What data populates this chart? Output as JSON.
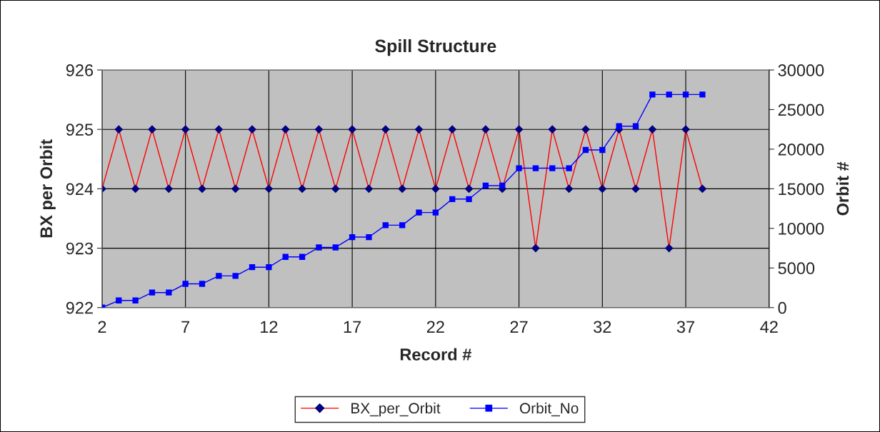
{
  "chart_data": {
    "type": "line",
    "title": "Spill Structure",
    "xlabel": "Record #",
    "ylabel": "BX per Orbit",
    "y2label": "Orbit #",
    "x": [
      2,
      3,
      4,
      5,
      6,
      7,
      8,
      9,
      10,
      11,
      12,
      13,
      14,
      15,
      16,
      17,
      18,
      19,
      20,
      21,
      22,
      23,
      24,
      25,
      26,
      27,
      28,
      29,
      30,
      31,
      32,
      33,
      34,
      35,
      36,
      37,
      38
    ],
    "series": [
      {
        "name": "BX_per_Orbit",
        "color": "#ff0000",
        "colors": [
          "#000080",
          "#000080",
          "#000080",
          "#000080",
          "#000080",
          "#000080",
          "#000080",
          "#000080",
          "#000080",
          "#000080",
          "#000080",
          "#000080",
          "#000080",
          "#000080",
          "#000080",
          "#000080",
          "#000080",
          "#000080",
          "#000080",
          "#000080",
          "#000080",
          "#000080",
          "#000080",
          "#000080",
          "#000080",
          "#000080",
          "#000080",
          "#000080",
          "#000080",
          "#000080",
          "#000080",
          "#000080",
          "#000080",
          "#000080",
          "#000080",
          "#000080",
          "#000080"
        ],
        "marker": "diamond",
        "values": [
          924,
          925,
          924,
          925,
          924,
          925,
          924,
          925,
          924,
          925,
          924,
          925,
          924,
          925,
          924,
          925,
          924,
          925,
          924,
          925,
          924,
          925,
          924,
          925,
          924,
          925,
          923,
          925,
          924,
          925,
          924,
          925,
          924,
          925,
          923,
          925,
          924
        ]
      },
      {
        "name": "Orbit_No",
        "color": "#0000ff",
        "marker": "square",
        "axis": "y2",
        "values": [
          0,
          900,
          900,
          1900,
          1900,
          3000,
          3000,
          4000,
          4000,
          5100,
          5100,
          6400,
          6400,
          7600,
          7600,
          8900,
          8900,
          10400,
          10400,
          12000,
          12000,
          13700,
          13700,
          15400,
          15400,
          17600,
          17600,
          17600,
          17600,
          19900,
          19900,
          22900,
          22900,
          26900,
          26900,
          26900,
          26900
        ]
      }
    ],
    "xlim": [
      2,
      42
    ],
    "xticks": [
      2,
      7,
      12,
      17,
      22,
      27,
      32,
      37,
      42
    ],
    "ylim": [
      922,
      926
    ],
    "yticks": [
      922,
      923,
      924,
      925,
      926
    ],
    "y2lim": [
      0,
      30000
    ],
    "y2ticks": [
      0,
      5000,
      10000,
      15000,
      20000,
      25000,
      30000
    ],
    "grid": true,
    "legend": "bottom"
  }
}
